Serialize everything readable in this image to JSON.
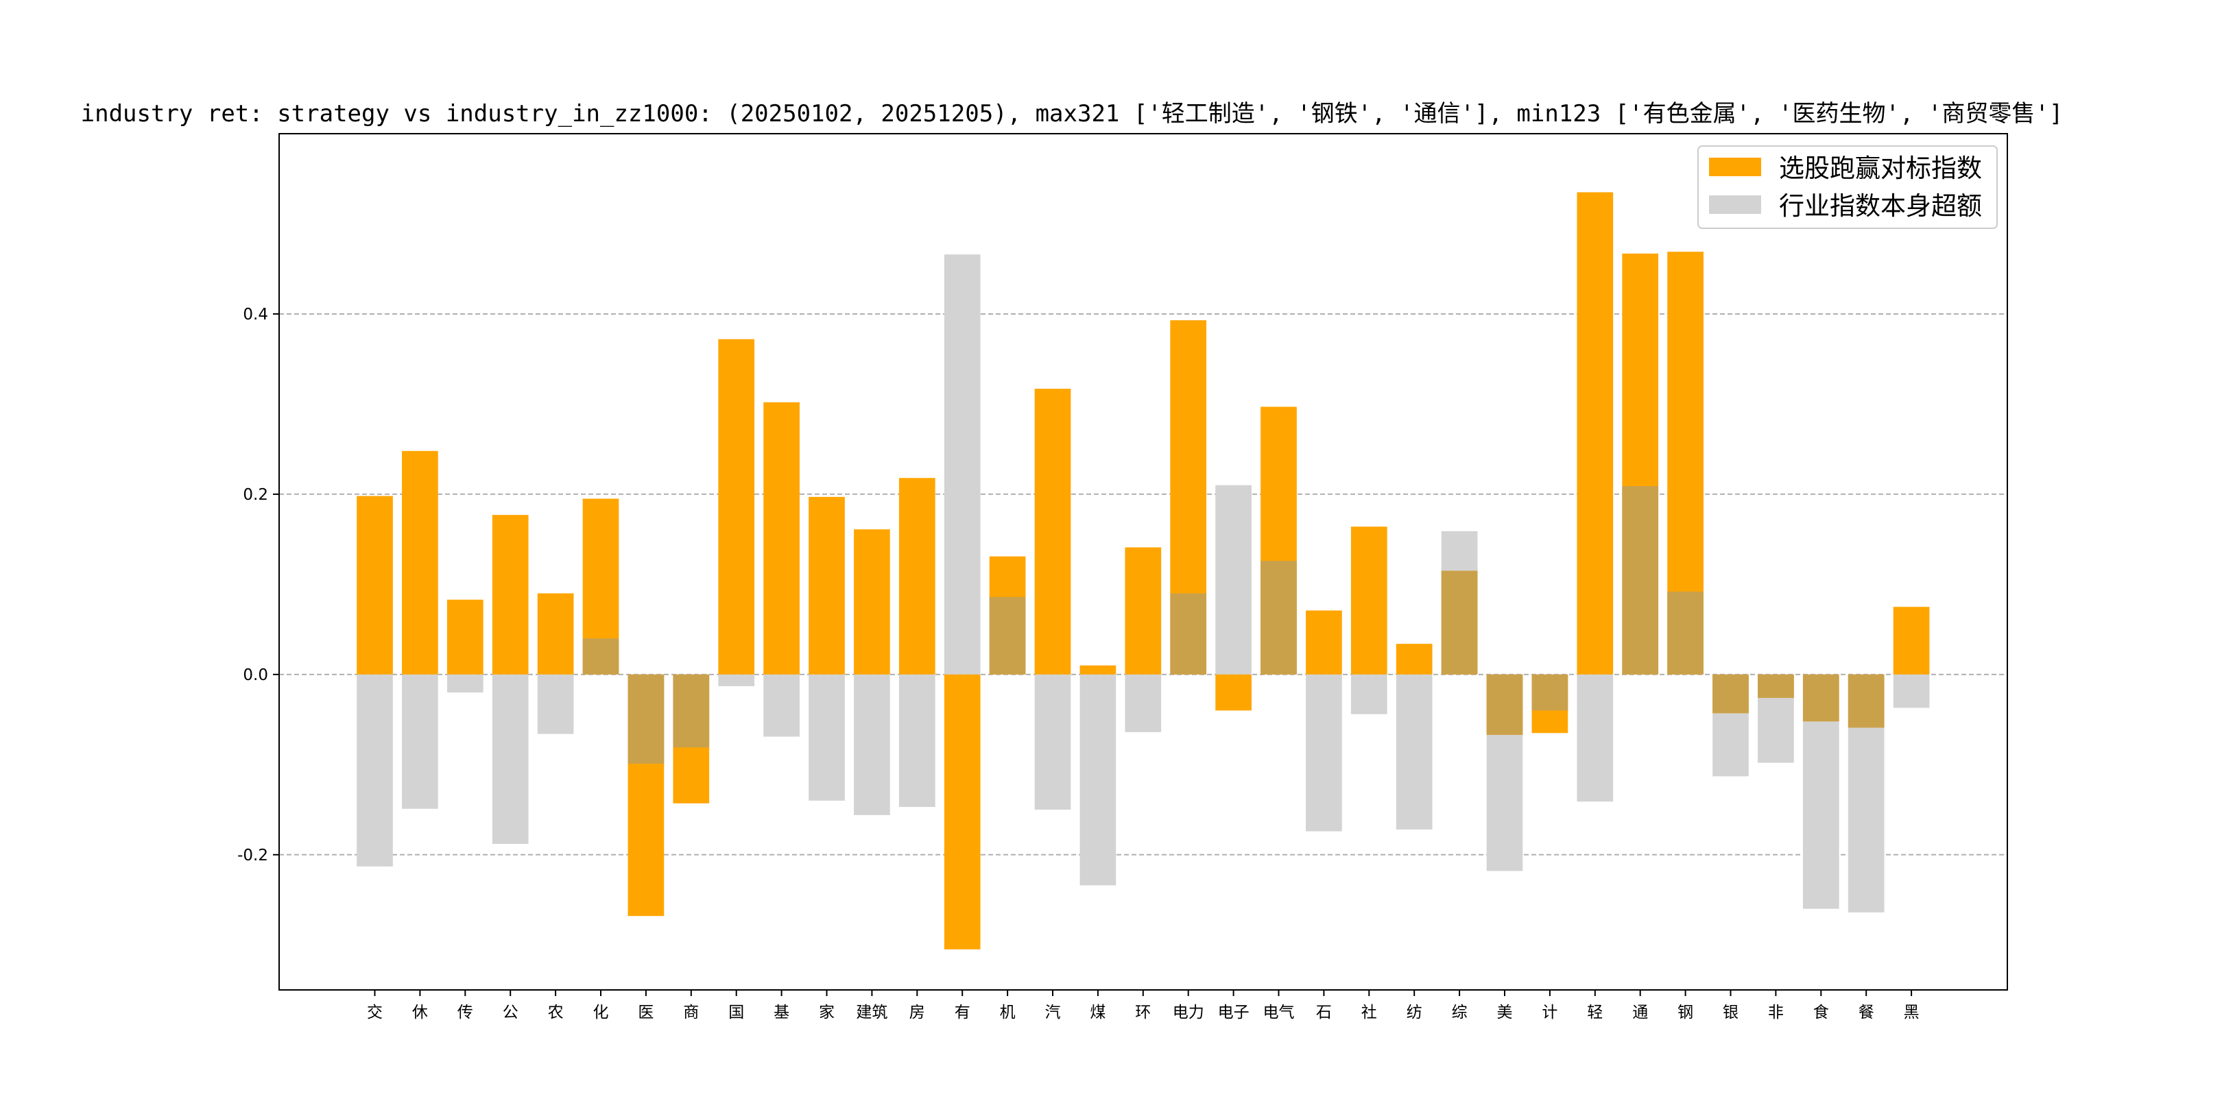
{
  "chart_data": {
    "type": "bar",
    "title": "industry ret: strategy vs industry_in_zz1000: (20250102, 20251205), max321 ['轻工制造', '钢铁', '通信'], min123 ['有色金属', '医药生物', '商贸零售']",
    "xlabel": "",
    "ylabel": "",
    "ylim": [
      -0.35,
      0.6
    ],
    "yticks": [
      -0.2,
      0.0,
      0.2,
      0.4
    ],
    "ytick_labels": [
      "-0.2",
      "0.0",
      "0.2",
      "0.4"
    ],
    "grid": "horizontal dashed",
    "legend_position": "top-right",
    "categories": [
      "交",
      "休",
      "传",
      "公",
      "农",
      "化",
      "医",
      "商",
      "国",
      "基",
      "家",
      "建筑",
      "房",
      "有",
      "机",
      "汽",
      "煤",
      "环",
      "电力",
      "电子",
      "电气",
      "石",
      "社",
      "纺",
      "综",
      "美",
      "计",
      "轻",
      "通",
      "钢",
      "银",
      "非",
      "食",
      "餐",
      "黑"
    ],
    "series": [
      {
        "name": "选股跑赢对标指数",
        "color": "#ffa500",
        "values": [
          0.198,
          0.248,
          0.083,
          0.177,
          0.09,
          0.195,
          -0.268,
          -0.143,
          0.372,
          0.302,
          0.197,
          0.161,
          0.218,
          -0.305,
          0.131,
          0.317,
          0.01,
          0.141,
          0.393,
          -0.04,
          0.297,
          0.071,
          0.164,
          0.034,
          0.115,
          -0.067,
          -0.065,
          0.535,
          0.467,
          0.469,
          -0.043,
          -0.026,
          -0.052,
          -0.059,
          0.075
        ]
      },
      {
        "name": "行业指数本身超额",
        "color": "#d3d3d3",
        "values": [
          -0.213,
          -0.149,
          -0.02,
          -0.188,
          -0.066,
          0.04,
          -0.099,
          -0.081,
          -0.013,
          -0.069,
          -0.14,
          -0.156,
          -0.147,
          0.466,
          0.086,
          -0.15,
          -0.234,
          -0.064,
          0.09,
          0.21,
          0.126,
          -0.174,
          -0.044,
          -0.172,
          0.159,
          -0.218,
          -0.04,
          -0.141,
          0.209,
          0.092,
          -0.113,
          -0.098,
          -0.26,
          -0.264,
          -0.037
        ]
      }
    ]
  }
}
